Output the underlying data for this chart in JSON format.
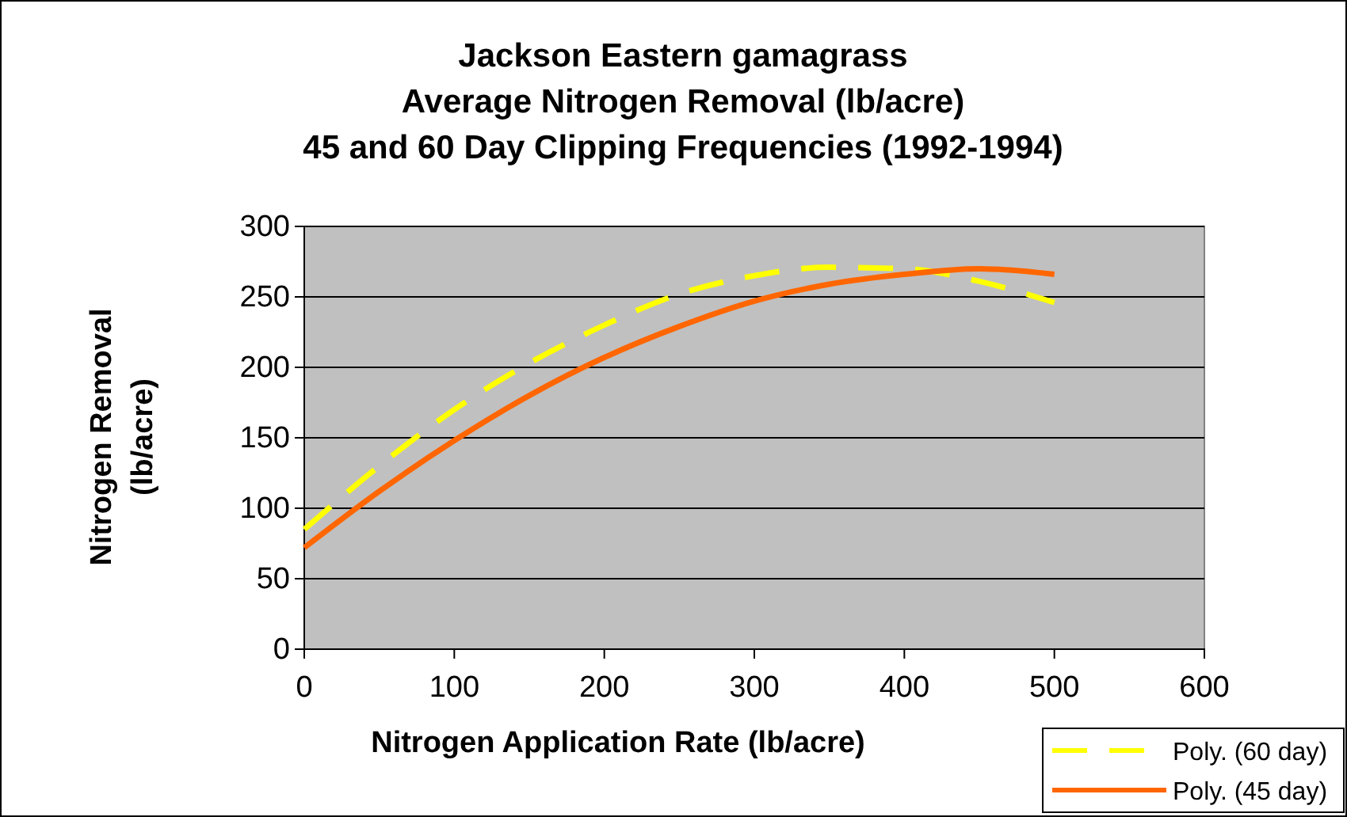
{
  "chart_data": {
    "type": "line",
    "title": "Jackson Eastern gamagrass\nAverage Nitrogen Removal (lb/acre)\n45 and 60 Day Clipping Frequencies (1992-1994)",
    "xlabel": "Nitrogen Application Rate (lb/acre)",
    "ylabel": "Nitrogen Removal\n(lb/acre)",
    "x": [
      0,
      50,
      100,
      150,
      200,
      250,
      300,
      350,
      400,
      450,
      500
    ],
    "series": [
      {
        "name": "Poly. (60 day)",
        "color": "#ffff00",
        "line_style": "dashed",
        "values": [
          85,
          130,
          170,
          203,
          230,
          252,
          265,
          271,
          270,
          261,
          246
        ]
      },
      {
        "name": "Poly. (45 day)",
        "color": "#ff6600",
        "line_style": "solid",
        "values": [
          72,
          112,
          148,
          180,
          207,
          229,
          247,
          259,
          266,
          270,
          266
        ]
      }
    ],
    "xlim": [
      0,
      600
    ],
    "xticks": [
      0,
      100,
      200,
      300,
      400,
      500,
      600
    ],
    "ylim": [
      0,
      300
    ],
    "yticks": [
      0,
      50,
      100,
      150,
      200,
      250,
      300
    ],
    "grid": "y",
    "legend": "bottom right",
    "marker": "none"
  }
}
